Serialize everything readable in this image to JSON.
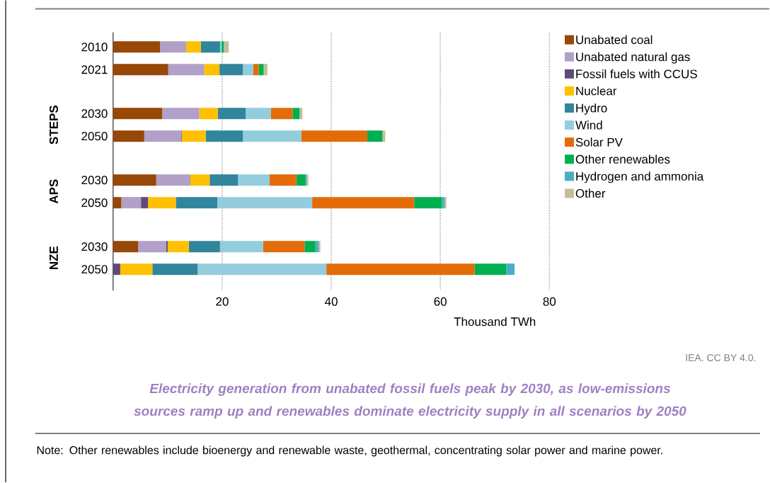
{
  "chart_data": {
    "type": "bar",
    "orientation": "horizontal",
    "stacked": true,
    "title": "Electricity generation from unabated fossil fuels peak by 2030, as low-emissions sources ramp up and renewables dominate electricity supply in all scenarios by 2050",
    "xlabel": "Thousand TWh",
    "categories": [
      "2010",
      "2021",
      "2030",
      "2050",
      "2030",
      "2050",
      "2030",
      "2050"
    ],
    "series": [
      {
        "name": "Unabated coal",
        "color": "#974706",
        "values": [
          8.6,
          10.1,
          9.0,
          5.7,
          7.9,
          1.5,
          4.6,
          0
        ]
      },
      {
        "name": "Unabated natural gas",
        "color": "#b1a0c7",
        "values": [
          4.8,
          6.6,
          6.8,
          6.8,
          6.1,
          3.6,
          5.1,
          0
        ]
      },
      {
        "name": "Fossil fuels with CCUS",
        "color": "#604a7b",
        "values": [
          0,
          0,
          0,
          0.1,
          0.1,
          1.3,
          0.3,
          1.3
        ]
      },
      {
        "name": "Nuclear",
        "color": "#ffc000",
        "values": [
          2.7,
          2.8,
          3.4,
          4.4,
          3.6,
          5.1,
          3.9,
          5.9
        ]
      },
      {
        "name": "Hydro",
        "color": "#31859c",
        "values": [
          3.5,
          4.3,
          5.1,
          6.8,
          5.2,
          7.6,
          5.7,
          8.3
        ]
      },
      {
        "name": "Wind",
        "color": "#93cddd",
        "values": [
          0.3,
          1.9,
          4.6,
          10.7,
          5.8,
          17.4,
          7.9,
          23.6
        ]
      },
      {
        "name": "Solar PV",
        "color": "#e36c09",
        "values": [
          0,
          1.0,
          4.0,
          12.1,
          4.9,
          18.7,
          7.6,
          27.2
        ]
      },
      {
        "name": "Other renewables",
        "color": "#00b050",
        "values": [
          0.4,
          0.9,
          1.3,
          2.8,
          1.7,
          5.1,
          2.0,
          5.8
        ]
      },
      {
        "name": "Hydrogen and ammonia",
        "color": "#4bacc6",
        "values": [
          0,
          0,
          0,
          0,
          0.2,
          0.5,
          0.6,
          1.5
        ]
      },
      {
        "name": "Other",
        "color": "#c4bd97",
        "values": [
          0.9,
          0.7,
          0.5,
          0.5,
          0.3,
          0.3,
          0.3,
          0
        ]
      }
    ],
    "xlim": [
      0,
      80
    ],
    "xticks": [
      20,
      40,
      60,
      80
    ],
    "grid": "x",
    "legend": "top right",
    "annotations": [
      "STEPS",
      "APS",
      "NZE",
      "IEA. CC BY 4.0.",
      "Note: Other renewables include bioenergy and renewable waste, geothermal, concentrating solar power and marine power."
    ]
  }
}
